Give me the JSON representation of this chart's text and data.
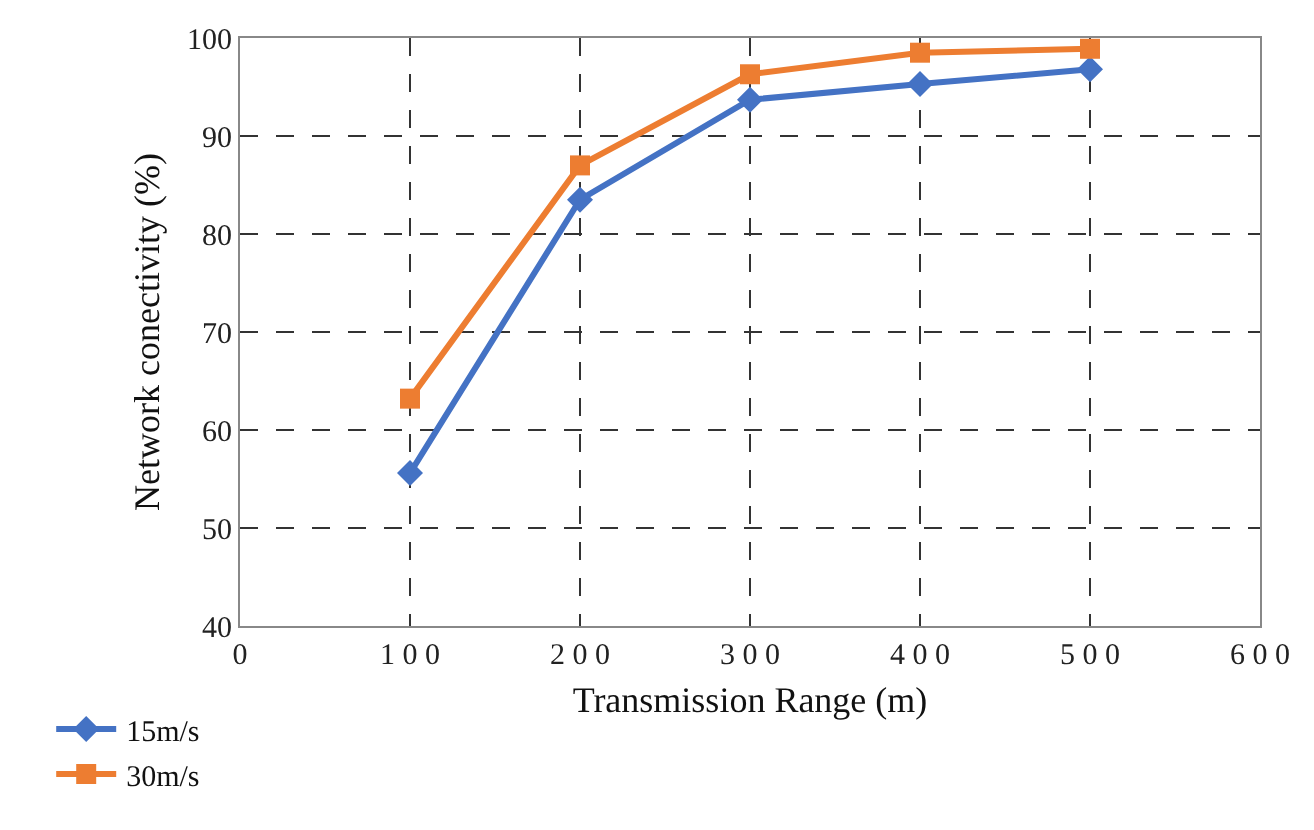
{
  "chart_data": {
    "type": "line",
    "xlabel": "Transmission Range (m)",
    "ylabel": "Network conectivity (%)",
    "x": [
      100,
      200,
      300,
      400,
      500
    ],
    "series": [
      {
        "name": "15m/s",
        "color": "#4472c4",
        "marker": "diamond",
        "values": [
          55.6,
          83.5,
          93.7,
          95.3,
          96.8
        ]
      },
      {
        "name": "30m/s",
        "color": "#ed7d31",
        "marker": "square",
        "values": [
          63.2,
          87.0,
          96.3,
          98.5,
          98.9
        ]
      }
    ],
    "xlim": [
      0,
      600
    ],
    "xticks": [
      0,
      100,
      200,
      300,
      400,
      500,
      600
    ],
    "ylim": [
      40,
      100
    ],
    "yticks": [
      40,
      50,
      60,
      70,
      80,
      90,
      100
    ],
    "grid": true,
    "legend": "bottom left",
    "line_style": "solid"
  }
}
